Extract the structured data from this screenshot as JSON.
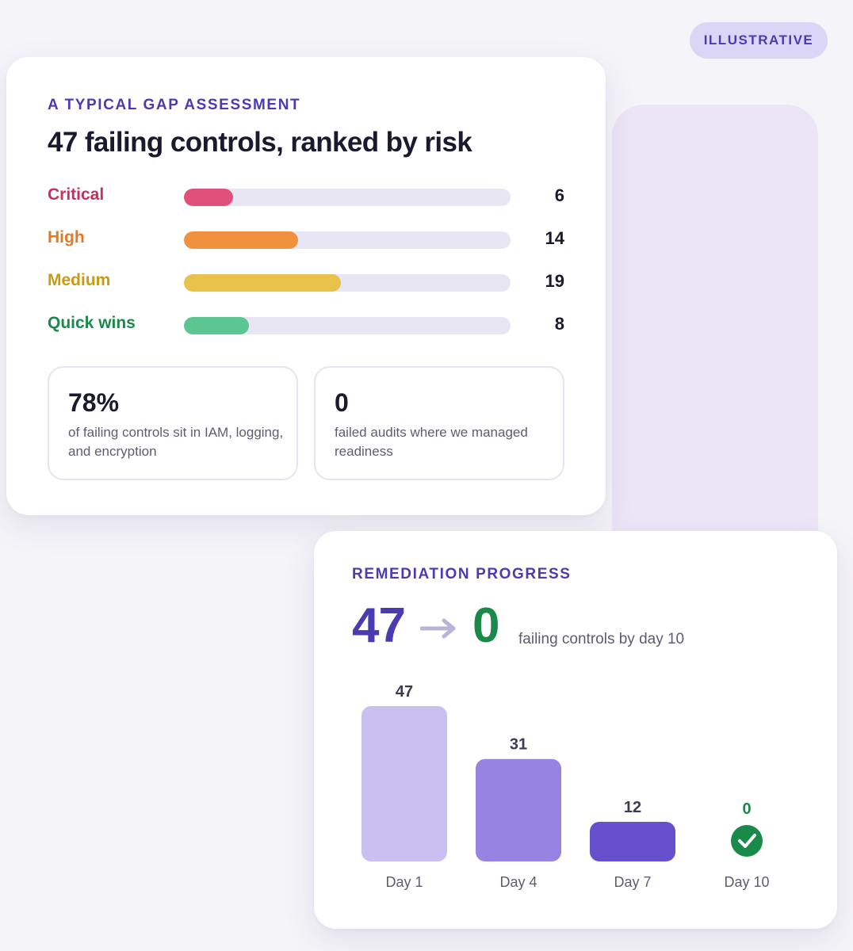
{
  "badge": {
    "label": "ILLUSTRATIVE"
  },
  "gap_card": {
    "eyebrow": "A TYPICAL GAP ASSESSMENT",
    "title": "47 failing controls, ranked by risk",
    "rows": [
      {
        "label": "Critical",
        "count": "6",
        "fill": 0.15,
        "color": "#e0507a",
        "label_color": "#cc2e5a"
      },
      {
        "label": "High",
        "count": "14",
        "fill": 0.35,
        "color": "#f0913f",
        "label_color": "#e07a24"
      },
      {
        "label": "Medium",
        "count": "19",
        "fill": 0.48,
        "color": "#e8c24a",
        "label_color": "#c99a12"
      },
      {
        "label": "Quick wins",
        "count": "8",
        "fill": 0.2,
        "color": "#5bc692",
        "label_color": "#1a8a4a"
      }
    ],
    "stats": [
      {
        "value": "78%",
        "text": "of failing controls sit in IAM, logging, and encryption"
      },
      {
        "value": "0",
        "text": "failed audits where we managed readiness"
      }
    ]
  },
  "remediation_card": {
    "eyebrow": "REMEDIATION PROGRESS",
    "from": "47",
    "arrow_icon": "arrow-right-icon",
    "to": "0",
    "caption": "failing controls by day 10"
  },
  "chart_data": {
    "type": "bar",
    "categories": [
      "Day 1",
      "Day 4",
      "Day 7",
      "Day 10"
    ],
    "values": [
      47,
      31,
      12,
      0
    ],
    "value_labels": [
      "47",
      "31",
      "12",
      "0"
    ],
    "bar_colors": [
      "#c9bff0",
      "#9683e2",
      "#6650cc",
      "#1a8a4a"
    ],
    "ylim": [
      0,
      47
    ],
    "zero_marker_icon": "check-circle-icon",
    "title": "",
    "xlabel": "",
    "ylabel": ""
  }
}
